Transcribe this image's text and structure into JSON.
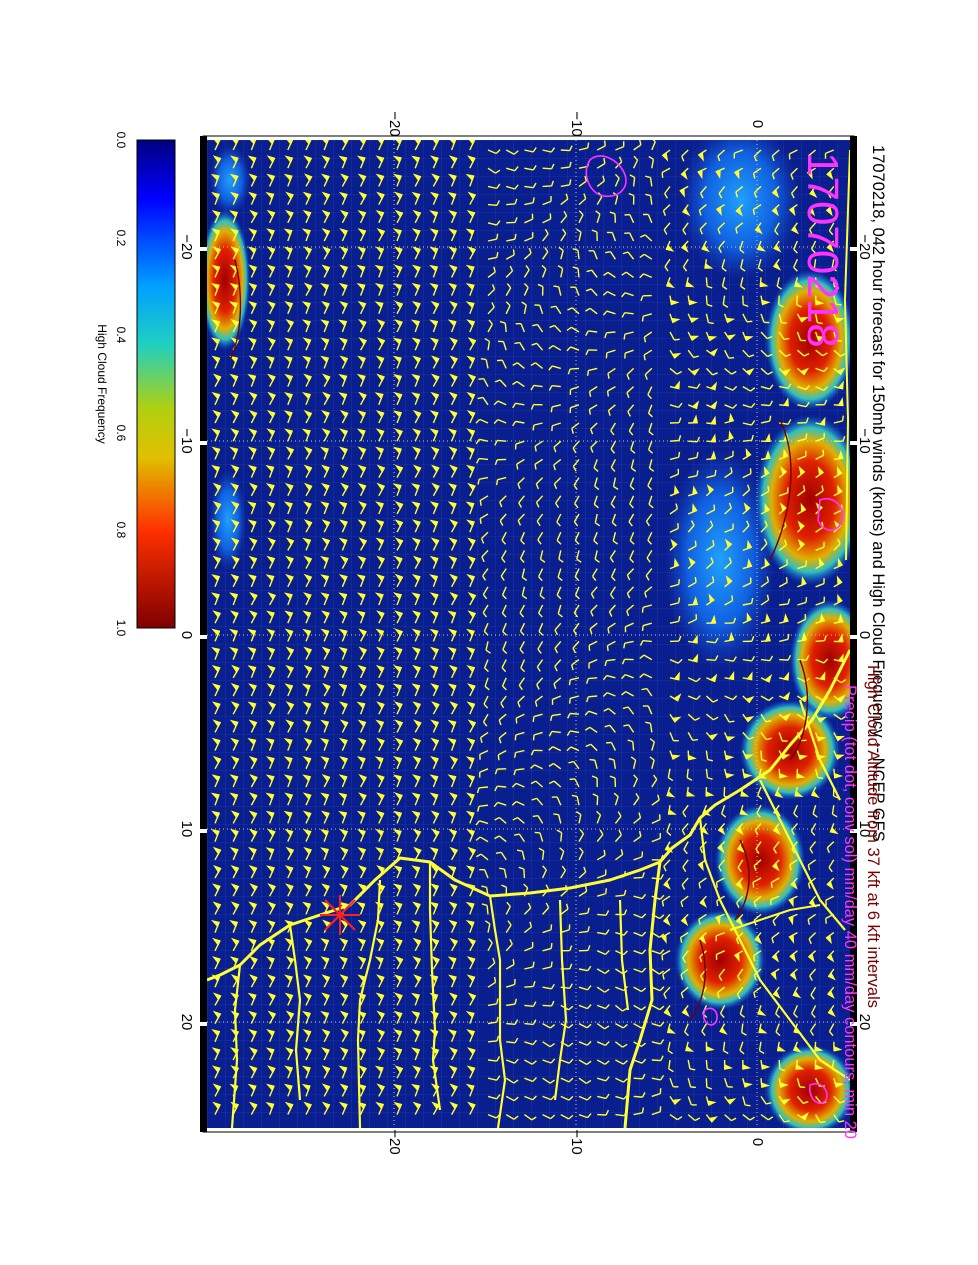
{
  "title": "17070218, 042 hour forecast for 150mb winds (knots) and High Cloud Frequency -- NCEP GFS",
  "stamp": "17070218",
  "subtitle_line1": "High Cloud Altitude from 37 kft at 6 kft intervals",
  "subtitle_line2": "Precip (tot dot, conv sol) mm/day 40 mm/day contours, min 20",
  "colorbar": {
    "label": "High Cloud Frequency",
    "ticks": [
      "0.0",
      "0.2",
      "0.4",
      "0.6",
      "0.8",
      "1.0"
    ]
  },
  "axes": {
    "lon_ticks": [
      "−20",
      "−10",
      "0",
      "10",
      "20"
    ],
    "lat_ticks": [
      "−20",
      "−10",
      "0"
    ]
  },
  "colors": {
    "ocean": "#0a1f8f",
    "land_outline": "#ffff33",
    "wind_barbs": "#ffff33",
    "precip": "#ff33ff",
    "cloud_high": "#b30000",
    "marker": "#ff2020"
  }
}
